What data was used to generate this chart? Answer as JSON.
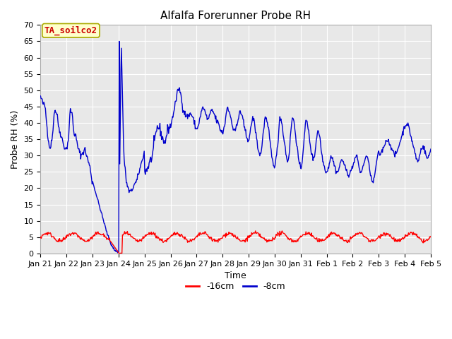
{
  "title": "Alfalfa Forerunner Probe RH",
  "ylabel": "Probe RH (%)",
  "xlabel": "Time",
  "ylim": [
    0,
    70
  ],
  "xtick_labels": [
    "Jan 21",
    "Jan 22",
    "Jan 23",
    "Jan 24",
    "Jan 25",
    "Jan 26",
    "Jan 27",
    "Jan 28",
    "Jan 29",
    "Jan 30",
    "Jan 31",
    "Feb 1",
    "Feb 2",
    "Feb 3",
    "Feb 4",
    "Feb 5"
  ],
  "legend_labels": [
    "-16cm",
    "-8cm"
  ],
  "red_color": "#ff0000",
  "blue_color": "#0000cc",
  "annotation_text": "TA_soilco2",
  "annotation_color": "#cc0000",
  "annotation_bg": "#ffffcc",
  "annotation_edge": "#aaaa00",
  "fig_bg_color": "#ffffff",
  "plot_bg_color": "#e8e8e8",
  "grid_color": "#ffffff",
  "title_fontsize": 11,
  "axis_fontsize": 9,
  "tick_fontsize": 8,
  "legend_fontsize": 9,
  "annotation_fontsize": 9,
  "line_width": 1.0
}
